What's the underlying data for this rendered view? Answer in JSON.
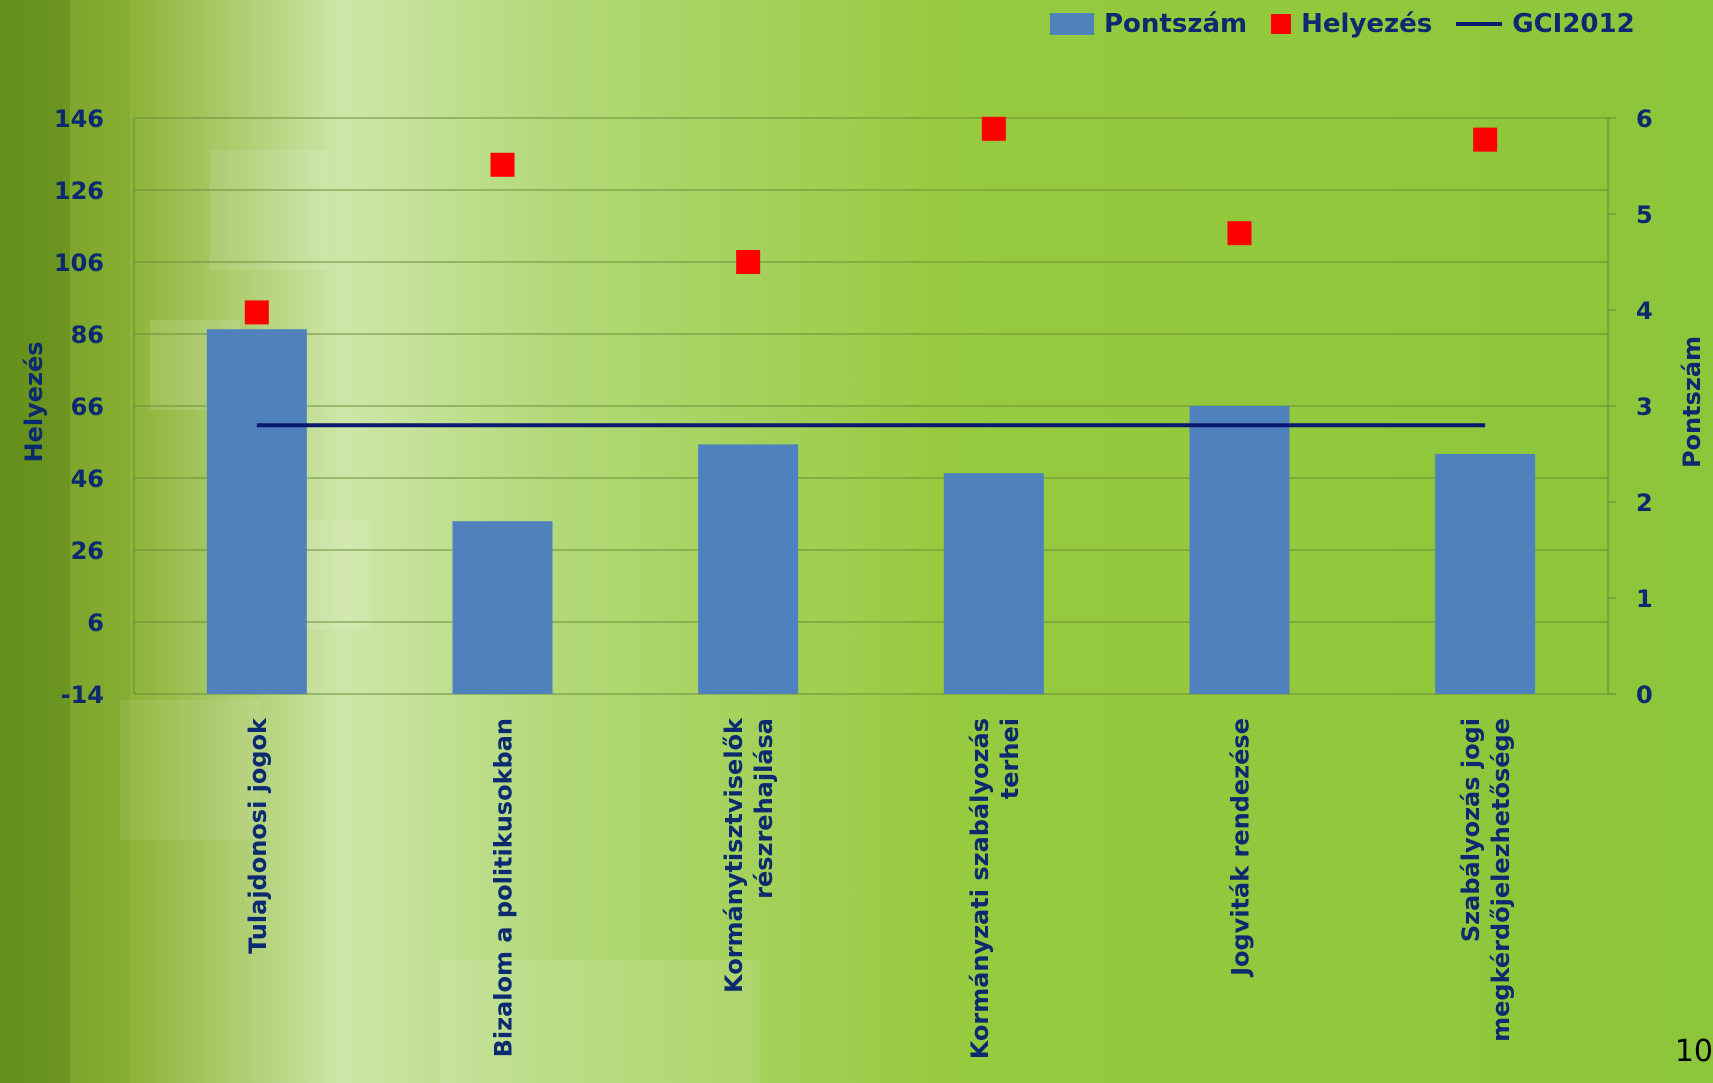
{
  "chart_data": {
    "type": "bar",
    "categories": [
      [
        "Tulajdonosi jogok"
      ],
      [
        "Bizalom a politikusokban"
      ],
      [
        "Kormánytisztviselők",
        "részrehajlása"
      ],
      [
        "Kormányzati szabályozás",
        "terhei"
      ],
      [
        "Jogviták rendezése"
      ],
      [
        "Szabályozás jogi",
        "megkérdőjelezhetősége"
      ]
    ],
    "series": [
      {
        "name": "Pontszám",
        "axis": "right",
        "values": [
          3.8,
          1.8,
          2.6,
          2.3,
          3.0,
          2.5
        ],
        "color": "#4f81bd"
      },
      {
        "name": "Helyezés",
        "axis": "left",
        "type": "scatter",
        "values": [
          92,
          133,
          106,
          143,
          114,
          140
        ],
        "color": "#ff0000"
      },
      {
        "name": "GCI2012",
        "axis": "right",
        "type": "line",
        "values": [
          2.8,
          2.8,
          2.8,
          2.8,
          2.8,
          2.8
        ],
        "color": "#0b1a6e"
      }
    ],
    "y_left": {
      "label": "Helyezés",
      "ticks": [
        146,
        126,
        106,
        86,
        66,
        46,
        26,
        6,
        -14
      ],
      "range": [
        -14,
        146
      ]
    },
    "y_right": {
      "label": "Pontszám",
      "ticks": [
        6,
        5,
        4,
        3,
        2,
        1,
        0
      ],
      "range": [
        0,
        6
      ]
    },
    "grid": true,
    "legend_position": "top-right"
  },
  "legend": {
    "bar_label": "Pontszám",
    "marker_label": "Helyezés",
    "line_label": "GCI2012"
  },
  "page_number": "10"
}
